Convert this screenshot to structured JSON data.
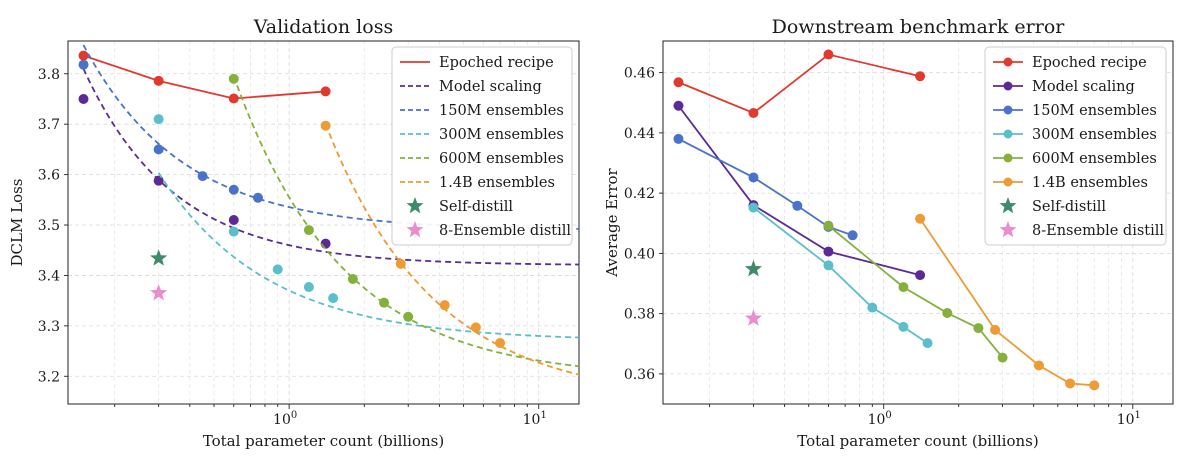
{
  "chart_data": [
    {
      "type": "line",
      "title": "Validation loss",
      "xlabel": "Total parameter count (billions)",
      "ylabel": "DCLM Loss",
      "xscale": "log",
      "xlim": [
        0.13,
        14.5
      ],
      "ylim": [
        3.145,
        3.865
      ],
      "xticks": [
        {
          "value": 1,
          "base": "10",
          "exp": "0"
        },
        {
          "value": 10,
          "base": "10",
          "exp": "1"
        }
      ],
      "yticks": [
        {
          "value": 3.2,
          "label": "3.2"
        },
        {
          "value": 3.3,
          "label": "3.3"
        },
        {
          "value": 3.4,
          "label": "3.4"
        },
        {
          "value": 3.5,
          "label": "3.5"
        },
        {
          "value": 3.6,
          "label": "3.6"
        },
        {
          "value": 3.7,
          "label": "3.7"
        },
        {
          "value": 3.8,
          "label": "3.8"
        }
      ],
      "grid": true,
      "legend_position": "top-right",
      "series": [
        {
          "name": "Epoched recipe",
          "color": "#e03a2f",
          "style": "solid",
          "marker": "circle",
          "x": [
            0.15,
            0.3,
            0.6,
            1.4
          ],
          "y": [
            3.836,
            3.786,
            3.751,
            3.765
          ]
        },
        {
          "name": "Model scaling",
          "color": "#5b2a96",
          "style": "dashed",
          "marker": "circle",
          "x": [
            0.15,
            0.3,
            0.6,
            1.4
          ],
          "y": [
            3.75,
            3.588,
            3.51,
            3.463
          ],
          "fit": {
            "a": 3.42,
            "b": 0.04,
            "alpha": 1.2
          }
        },
        {
          "name": "150M ensembles",
          "color": "#4a72c8",
          "style": "dashed",
          "marker": "circle",
          "x": [
            0.15,
            0.3,
            0.45,
            0.6,
            0.75
          ],
          "y": [
            3.818,
            3.65,
            3.597,
            3.57,
            3.554
          ],
          "fit": {
            "a": 3.49,
            "b": 0.0455,
            "alpha": 1.1
          }
        },
        {
          "name": "300M ensembles",
          "color": "#5bbfc9",
          "style": "dashed",
          "marker": "circle",
          "x": [
            0.3,
            0.6,
            0.9,
            1.2,
            1.5
          ],
          "y": [
            3.71,
            3.487,
            3.412,
            3.377,
            3.355
          ],
          "fit": {
            "a": 3.27,
            "b": 0.1,
            "alpha": 1.0
          }
        },
        {
          "name": "600M ensembles",
          "color": "#85b03c",
          "style": "dashed",
          "marker": "circle",
          "x": [
            0.6,
            1.2,
            1.8,
            2.4,
            3.0
          ],
          "y": [
            3.79,
            3.49,
            3.393,
            3.346,
            3.318
          ],
          "fit": {
            "a": 3.195,
            "b": 0.36,
            "alpha": 1.0
          }
        },
        {
          "name": "1.4B ensembles",
          "color": "#ee9a35",
          "style": "dashed",
          "marker": "circle",
          "x": [
            1.4,
            2.8,
            4.2,
            5.6,
            7.0
          ],
          "y": [
            3.697,
            3.423,
            3.341,
            3.297,
            3.266
          ],
          "fit": {
            "a": 3.15,
            "b": 0.77,
            "alpha": 1.0
          }
        },
        {
          "name": "Self-distill",
          "color": "#3e8a6a",
          "style": "none",
          "marker": "star",
          "x": [
            0.3
          ],
          "y": [
            3.434
          ]
        },
        {
          "name": "8-Ensemble distill",
          "color": "#ec8bce",
          "style": "none",
          "marker": "star",
          "x": [
            0.3
          ],
          "y": [
            3.365
          ]
        }
      ]
    },
    {
      "type": "line",
      "title": "Downstream benchmark error",
      "xlabel": "Total parameter count (billions)",
      "ylabel": "Average Error",
      "xscale": "log",
      "xlim": [
        0.13,
        14.5
      ],
      "ylim": [
        0.35,
        0.4705
      ],
      "xticks": [
        {
          "value": 1,
          "base": "10",
          "exp": "0"
        },
        {
          "value": 10,
          "base": "10",
          "exp": "1"
        }
      ],
      "yticks": [
        {
          "value": 0.36,
          "label": "0.36"
        },
        {
          "value": 0.38,
          "label": "0.38"
        },
        {
          "value": 0.4,
          "label": "0.40"
        },
        {
          "value": 0.42,
          "label": "0.42"
        },
        {
          "value": 0.44,
          "label": "0.44"
        },
        {
          "value": 0.46,
          "label": "0.46"
        }
      ],
      "grid": true,
      "legend_position": "top-right",
      "series": [
        {
          "name": "Epoched recipe",
          "color": "#e03a2f",
          "style": "solid",
          "marker": "circle",
          "x": [
            0.15,
            0.3,
            0.6,
            1.4
          ],
          "y": [
            0.4568,
            0.4466,
            0.466,
            0.4588
          ]
        },
        {
          "name": "Model scaling",
          "color": "#5b2a96",
          "style": "solid",
          "marker": "circle",
          "x": [
            0.15,
            0.3,
            0.6,
            1.4
          ],
          "y": [
            0.449,
            0.416,
            0.4006,
            0.3928
          ]
        },
        {
          "name": "150M ensembles",
          "color": "#4a72c8",
          "style": "solid",
          "marker": "circle",
          "x": [
            0.15,
            0.3,
            0.45,
            0.6,
            0.75
          ],
          "y": [
            0.438,
            0.4252,
            0.4158,
            0.4088,
            0.406
          ]
        },
        {
          "name": "300M ensembles",
          "color": "#5bbfc9",
          "style": "solid",
          "marker": "circle",
          "x": [
            0.3,
            0.6,
            0.9,
            1.2,
            1.5
          ],
          "y": [
            0.4152,
            0.396,
            0.382,
            0.3756,
            0.3702
          ]
        },
        {
          "name": "600M ensembles",
          "color": "#85b03c",
          "style": "solid",
          "marker": "circle",
          "x": [
            0.6,
            1.2,
            1.8,
            2.4,
            3.0
          ],
          "y": [
            0.4092,
            0.3888,
            0.3802,
            0.3752,
            0.3654
          ]
        },
        {
          "name": "1.4B ensembles",
          "color": "#ee9a35",
          "style": "solid",
          "marker": "circle",
          "x": [
            1.4,
            2.8,
            4.2,
            5.6,
            7.0
          ],
          "y": [
            0.4115,
            0.3746,
            0.3628,
            0.3568,
            0.3562
          ]
        },
        {
          "name": "Self-distill",
          "color": "#3e8a6a",
          "style": "none",
          "marker": "star",
          "x": [
            0.3
          ],
          "y": [
            0.3948
          ]
        },
        {
          "name": "8-Ensemble distill",
          "color": "#ec8bce",
          "style": "none",
          "marker": "star",
          "x": [
            0.3
          ],
          "y": [
            0.3784
          ]
        }
      ]
    }
  ]
}
